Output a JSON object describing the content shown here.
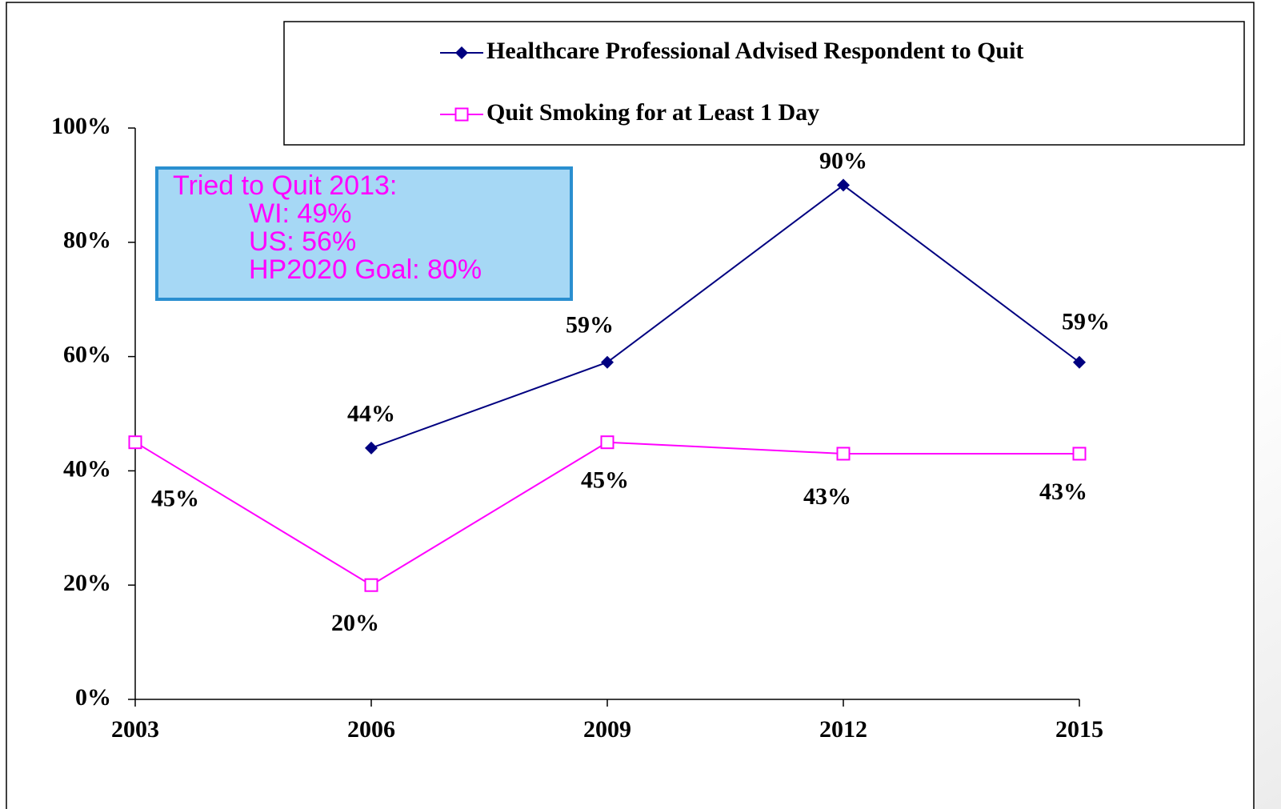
{
  "chart_data": {
    "type": "line",
    "categories": [
      "2003",
      "2006",
      "2009",
      "2012",
      "2015"
    ],
    "series": [
      {
        "name": "Healthcare Professional Advised Respondent to Quit",
        "color": "#000080",
        "marker": "diamond",
        "values": [
          null,
          44,
          59,
          90,
          59
        ],
        "value_labels": [
          null,
          "44%",
          "59%",
          "90%",
          "59%"
        ]
      },
      {
        "name": "Quit Smoking for at Least 1 Day",
        "color": "#ff00ff",
        "marker": "square",
        "values": [
          45,
          20,
          45,
          43,
          43
        ],
        "value_labels": [
          "45%",
          "20%",
          "45%",
          "43%",
          "43%"
        ]
      }
    ],
    "ylim": [
      0,
      100
    ],
    "yticks": [
      {
        "value": 0,
        "label": "0%"
      },
      {
        "value": 20,
        "label": "20%"
      },
      {
        "value": 40,
        "label": "40%"
      },
      {
        "value": 60,
        "label": "60%"
      },
      {
        "value": 80,
        "label": "80%"
      },
      {
        "value": 100,
        "label": "100%"
      }
    ],
    "grid": false,
    "legend": "top-right",
    "annotation": {
      "lines": [
        "Tried to Quit 2013:",
        "WI: 49%",
        "US: 56%",
        "HP2020 Goal: 80%"
      ]
    }
  }
}
